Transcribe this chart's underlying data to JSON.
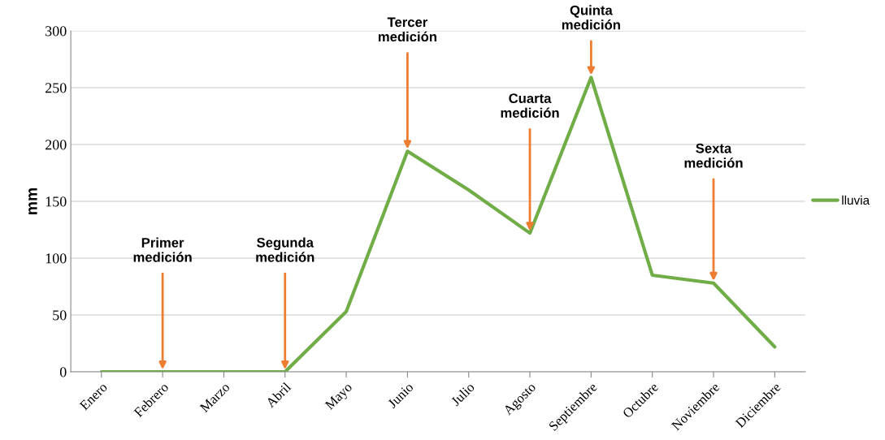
{
  "chart_data": {
    "type": "line",
    "ylabel": "mm",
    "categories": [
      "Enero",
      "Febrero",
      "Marzo",
      "Abril",
      "Mayo",
      "Junio",
      "Julio",
      "Agosto",
      "Septiembre",
      "Octubre",
      "Noviembre",
      "Diciembre"
    ],
    "series": [
      {
        "name": "lluvia",
        "color": "#70ad47",
        "values": [
          0,
          0,
          0,
          0,
          53,
          194,
          160,
          122,
          259,
          85,
          78,
          22
        ]
      }
    ],
    "ylim": [
      0,
      300
    ],
    "yticks": [
      0,
      50,
      100,
      150,
      200,
      250,
      300
    ],
    "grid": "y",
    "legend": "right",
    "marker": "none",
    "line_style": "solid",
    "annotations": [
      {
        "text": "Primer\nmedición",
        "x": "Febrero",
        "y": 0
      },
      {
        "text": "Segunda\nmedición",
        "x": "Abril",
        "y": 0
      },
      {
        "text": "Tercer\nmedición",
        "x": "Junio",
        "y": 194
      },
      {
        "text": "Cuarta\nmedición",
        "x": "Agosto",
        "y": 122
      },
      {
        "text": "Quinta\nmedición",
        "x": "Septiembre",
        "y": 259
      },
      {
        "text": "Sexta\nmedición",
        "x": "Noviembre",
        "y": 78
      }
    ]
  }
}
